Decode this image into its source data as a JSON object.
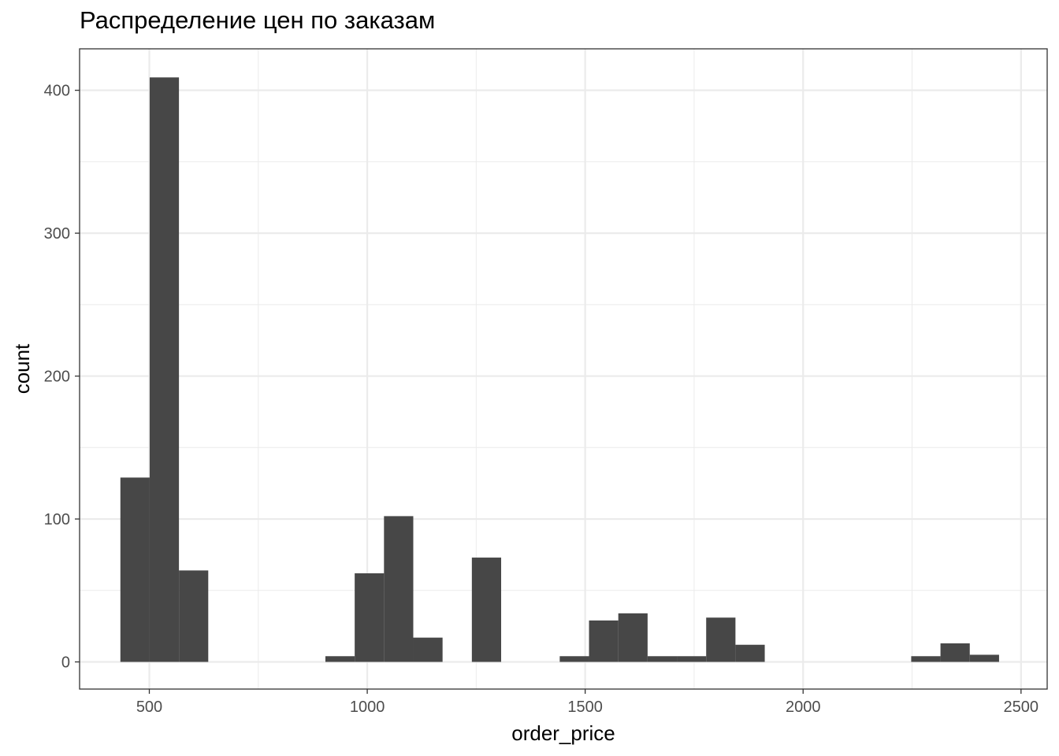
{
  "chart_data": {
    "type": "bar",
    "title": "Распределение цен по заказам",
    "xlabel": "order_price",
    "ylabel": "count",
    "xlim": [
      340,
      2560
    ],
    "ylim": [
      -19,
      429
    ],
    "x_ticks": [
      500,
      1000,
      1500,
      2000,
      2500
    ],
    "y_ticks": [
      0,
      100,
      200,
      300,
      400
    ],
    "grid": true,
    "bar_color": "#474747",
    "bin_width": 67.2,
    "bins": [
      {
        "start": 433.6,
        "count": 129
      },
      {
        "start": 500.8,
        "count": 409
      },
      {
        "start": 568.0,
        "count": 64
      },
      {
        "start": 635.2,
        "count": 0
      },
      {
        "start": 702.4,
        "count": 0
      },
      {
        "start": 769.6,
        "count": 0
      },
      {
        "start": 836.8,
        "count": 0
      },
      {
        "start": 904.0,
        "count": 4
      },
      {
        "start": 971.2,
        "count": 62
      },
      {
        "start": 1038.4,
        "count": 102
      },
      {
        "start": 1105.6,
        "count": 17
      },
      {
        "start": 1172.8,
        "count": 0
      },
      {
        "start": 1240.0,
        "count": 73
      },
      {
        "start": 1307.2,
        "count": 0
      },
      {
        "start": 1374.4,
        "count": 0
      },
      {
        "start": 1441.6,
        "count": 4
      },
      {
        "start": 1508.8,
        "count": 29
      },
      {
        "start": 1576.0,
        "count": 34
      },
      {
        "start": 1643.2,
        "count": 4
      },
      {
        "start": 1710.4,
        "count": 4
      },
      {
        "start": 1777.6,
        "count": 31
      },
      {
        "start": 1844.8,
        "count": 12
      },
      {
        "start": 1912.0,
        "count": 0
      },
      {
        "start": 1979.2,
        "count": 0
      },
      {
        "start": 2046.4,
        "count": 0
      },
      {
        "start": 2113.6,
        "count": 0
      },
      {
        "start": 2180.8,
        "count": 0
      },
      {
        "start": 2248.0,
        "count": 4
      },
      {
        "start": 2315.2,
        "count": 13
      },
      {
        "start": 2382.4,
        "count": 5
      }
    ]
  }
}
